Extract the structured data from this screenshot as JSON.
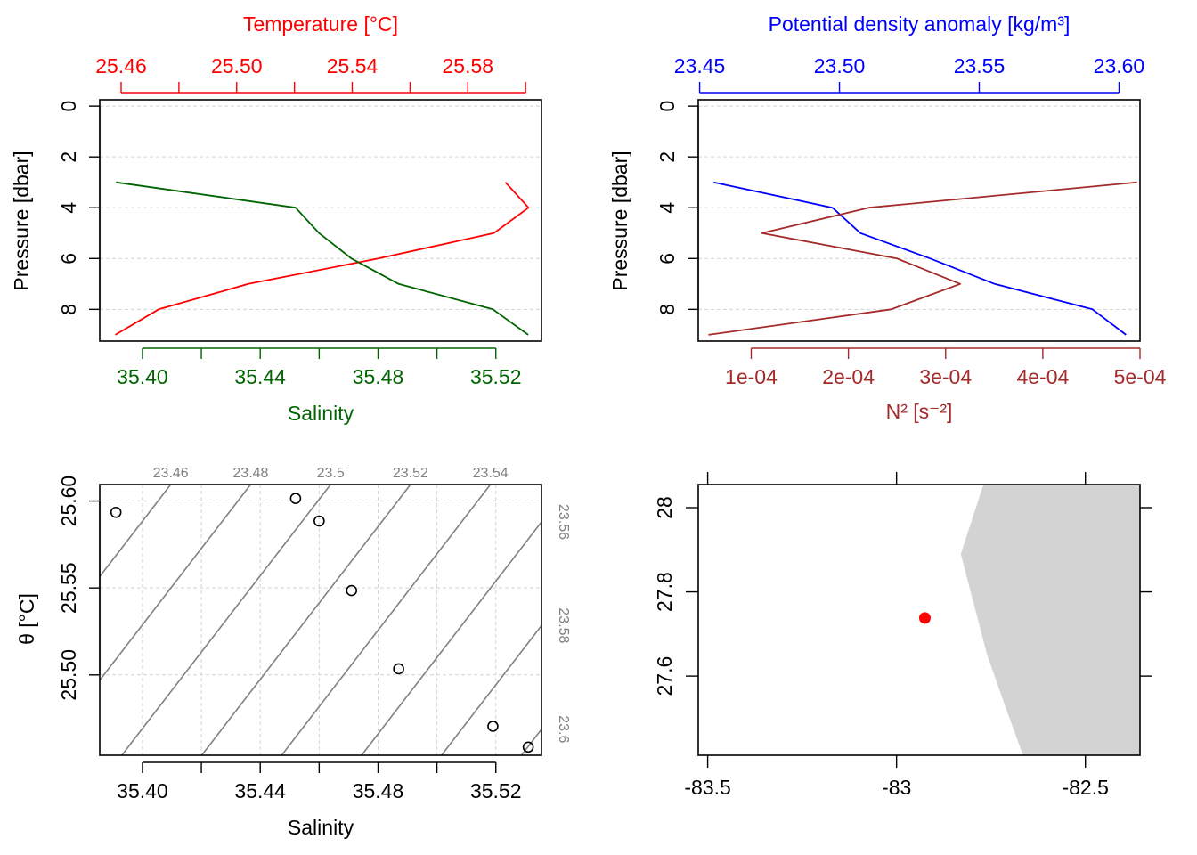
{
  "colors": {
    "temperature": "#ff0000",
    "salinity": "#006400",
    "density": "#0000ff",
    "n2": "#a52a2a",
    "isopycnal": "#808080",
    "land": "#d3d3d3",
    "station": "#ff0000",
    "grid": "#d3d3d3",
    "axis": "#000000"
  },
  "chart_data": [
    {
      "type": "line",
      "panel": "profile-temperature-salinity",
      "ylabel": "Pressure [dbar]",
      "ylim": [
        9.25,
        -0.25
      ],
      "yticks": [
        0,
        2,
        4,
        6,
        8
      ],
      "ytick_labels": [
        "0",
        "2",
        "4",
        "6",
        "8"
      ],
      "top_axis": {
        "label": "Temperature [°C]",
        "lim": [
          25.4526,
          25.6055
        ],
        "ticks": [
          25.46,
          25.48,
          25.5,
          25.52,
          25.54,
          25.56,
          25.58,
          25.6
        ],
        "labels": [
          "25.46",
          "",
          "25.50",
          "",
          "25.54",
          "",
          "25.58",
          ""
        ]
      },
      "bottom_axis": {
        "label": "Salinity",
        "lim": [
          35.3855,
          35.5355
        ],
        "ticks": [
          35.4,
          35.42,
          35.44,
          35.46,
          35.48,
          35.5,
          35.52
        ],
        "labels": [
          "35.40",
          "",
          "35.44",
          "",
          "35.48",
          "",
          "35.52"
        ]
      },
      "grid": true,
      "series": [
        {
          "axis": "top",
          "color": "temperature",
          "x": [
            25.593,
            25.601,
            25.589,
            25.549,
            25.504,
            25.473,
            25.458
          ],
          "y": [
            3,
            4,
            5,
            6,
            7,
            8,
            9
          ]
        },
        {
          "axis": "bottom",
          "color": "salinity",
          "x": [
            35.391,
            35.452,
            35.46,
            35.471,
            35.487,
            35.519,
            35.531
          ],
          "y": [
            3,
            4,
            5,
            6,
            7,
            8,
            9
          ]
        }
      ]
    },
    {
      "type": "line",
      "panel": "profile-density-n2",
      "ylabel": "Pressure [dbar]",
      "ylim": [
        9.25,
        -0.25
      ],
      "yticks": [
        0,
        2,
        4,
        6,
        8
      ],
      "ytick_labels": [
        "0",
        "2",
        "4",
        "6",
        "8"
      ],
      "top_axis": {
        "label": "Potential density anomaly [kg/m³]",
        "lim": [
          23.4495,
          23.6075
        ],
        "ticks": [
          23.45,
          23.5,
          23.55,
          23.6
        ],
        "labels": [
          "23.45",
          "23.50",
          "23.55",
          "23.60"
        ]
      },
      "bottom_axis": {
        "label": "N² [s⁻²]",
        "lim": [
          4.55e-05,
          0.0005
        ],
        "ticks": [
          0.0001,
          0.0002,
          0.0003,
          0.0004,
          0.0005
        ],
        "labels": [
          "1e-04",
          "2e-04",
          "3e-04",
          "4e-04",
          "5e-04"
        ]
      },
      "grid": true,
      "series": [
        {
          "axis": "top",
          "color": "density",
          "x": [
            23.455,
            23.4975,
            23.5075,
            23.5325,
            23.5555,
            23.5905,
            23.6025
          ],
          "y": [
            3,
            4,
            5,
            6,
            7,
            8,
            9
          ]
        },
        {
          "axis": "bottom",
          "color": "n2",
          "x": [
            0.000497,
            0.000221,
            0.000111,
            0.00025,
            0.000315,
            0.000244,
            5.6e-05
          ],
          "y": [
            3,
            4,
            5,
            6,
            7,
            8,
            9
          ]
        }
      ]
    },
    {
      "type": "scatter",
      "panel": "ts-diagram",
      "xlabel": "Salinity",
      "ylabel": "θ [°C]",
      "xlim": [
        35.3855,
        35.5355
      ],
      "ylim": [
        25.4538,
        25.6095
      ],
      "xticks": [
        35.4,
        35.42,
        35.44,
        35.46,
        35.48,
        35.5,
        35.52
      ],
      "xtick_labels": [
        "35.40",
        "",
        "35.44",
        "",
        "35.48",
        "",
        "35.52"
      ],
      "yticks": [
        25.5,
        25.55,
        25.6
      ],
      "ytick_labels": [
        "25.50",
        "25.55",
        "25.60"
      ],
      "grid": true,
      "points": {
        "x": [
          35.391,
          35.452,
          35.46,
          35.471,
          35.487,
          35.519,
          35.531
        ],
        "y": [
          25.5935,
          25.6015,
          25.5885,
          25.5485,
          25.5035,
          25.4705,
          25.4585
        ]
      },
      "isopycnals": [
        {
          "label": "23.46",
          "sigma": 23.46
        },
        {
          "label": "23.48",
          "sigma": 23.48
        },
        {
          "label": "23.5",
          "sigma": 23.5
        },
        {
          "label": "23.52",
          "sigma": 23.52
        },
        {
          "label": "23.54",
          "sigma": 23.54
        },
        {
          "label": "23.56",
          "sigma": 23.56
        },
        {
          "label": "23.58",
          "sigma": 23.58
        },
        {
          "label": "23.6",
          "sigma": 23.6
        }
      ]
    },
    {
      "type": "scatter",
      "panel": "station-map",
      "xlim": [
        -83.525,
        -82.3555
      ],
      "ylim": [
        27.412,
        28.055
      ],
      "xticks": [
        -83.5,
        -83.0,
        -82.5
      ],
      "xtick_labels": [
        "-83.5",
        "-83",
        "-82.5"
      ],
      "yticks": [
        27.6,
        27.8,
        28.0
      ],
      "ytick_labels": [
        "27.6",
        "27.8",
        "28"
      ],
      "station": {
        "lon": -82.925,
        "lat": 27.738
      },
      "coastline": [
        [
          -82.77,
          28.055
        ],
        [
          -82.83,
          27.89
        ],
        [
          -82.76,
          27.65
        ],
        [
          -82.705,
          27.51
        ],
        [
          -82.665,
          27.412
        ],
        [
          -82.3555,
          27.412
        ],
        [
          -82.3555,
          28.055
        ]
      ]
    }
  ]
}
